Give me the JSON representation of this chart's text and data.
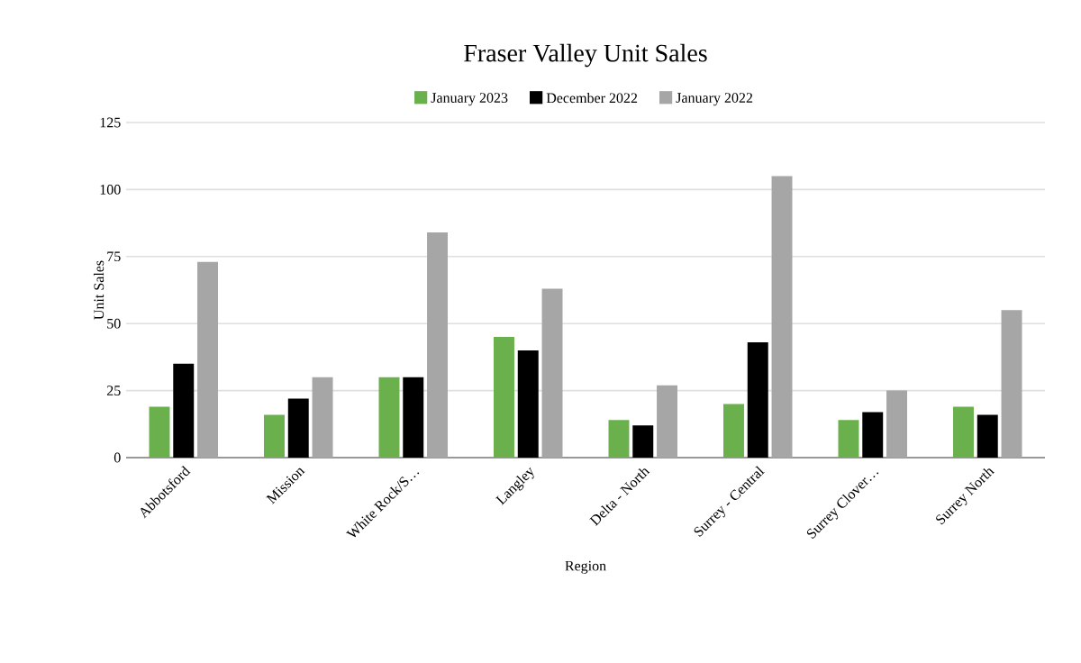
{
  "chart_data": {
    "type": "bar",
    "title": "Fraser Valley Unit Sales",
    "xlabel": "Region",
    "ylabel": "Unit Sales",
    "categories": [
      "Abbotsford",
      "Mission",
      "White Rock/S…",
      "Langley",
      "Delta - North",
      "Surrey - Central",
      "Surrey Clover…",
      "Surrey North"
    ],
    "series": [
      {
        "name": "January 2023",
        "color": "#6ab04c",
        "values": [
          19,
          16,
          30,
          45,
          14,
          20,
          14,
          19
        ]
      },
      {
        "name": "December 2022",
        "color": "#000000",
        "values": [
          35,
          22,
          30,
          40,
          12,
          43,
          17,
          16
        ]
      },
      {
        "name": "January 2022",
        "color": "#a6a6a6",
        "values": [
          73,
          30,
          84,
          63,
          27,
          105,
          25,
          55
        ]
      }
    ],
    "ylim": [
      0,
      125
    ],
    "yticks": [
      0,
      25,
      50,
      75,
      100,
      125
    ],
    "grid": "y",
    "legend": "top"
  }
}
